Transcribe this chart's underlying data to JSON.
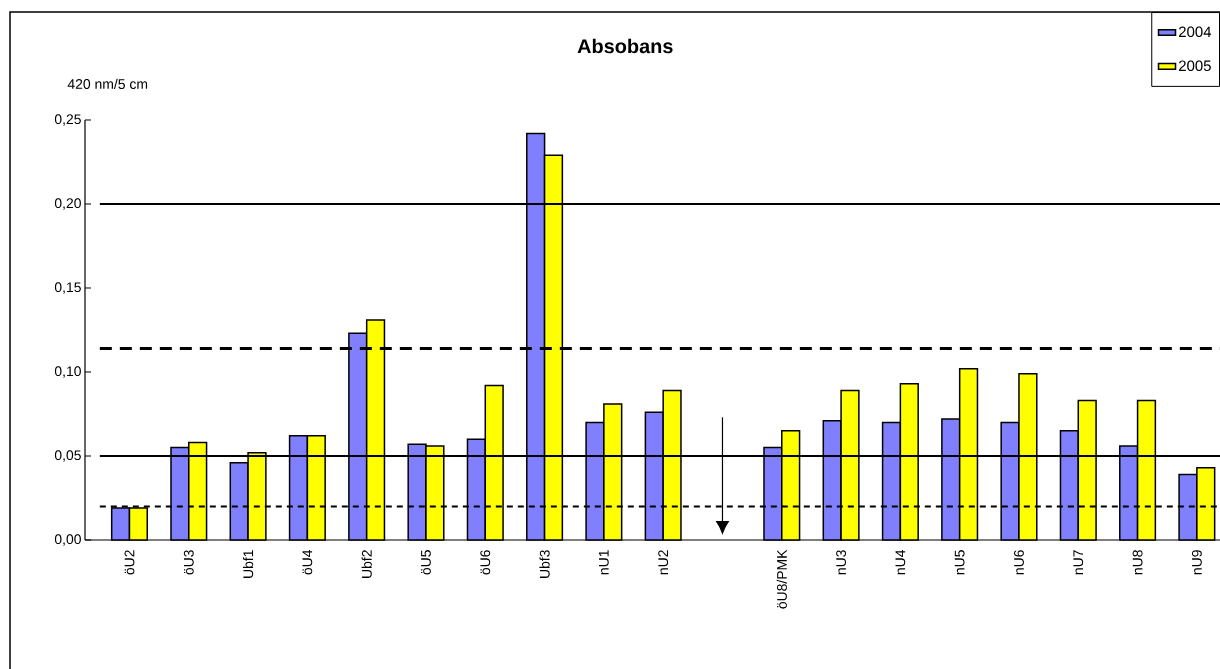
{
  "chart_data": {
    "type": "bar",
    "title": "Absobans",
    "ylabel": "420 nm/5 cm",
    "categories": [
      "öU2",
      "öU3",
      "Ubf1",
      "öU4",
      "Ubf2",
      "öU5",
      "öU6",
      "Ubf3",
      "nU1",
      "nU2",
      null,
      "öU8/PMK",
      "nU3",
      "nU4",
      "nU5",
      "nU6",
      "nU7",
      "nU8",
      "nU9"
    ],
    "series": [
      {
        "name": "2004",
        "color": "#8080ff",
        "values": [
          0.019,
          0.055,
          0.046,
          0.062,
          0.123,
          0.057,
          0.06,
          0.242,
          0.07,
          0.076,
          null,
          0.055,
          0.071,
          0.07,
          0.072,
          0.07,
          0.065,
          0.056,
          0.039
        ]
      },
      {
        "name": "2005",
        "color": "#ffff00",
        "values": [
          0.019,
          0.058,
          0.052,
          0.062,
          0.131,
          0.056,
          0.092,
          0.229,
          0.081,
          0.089,
          null,
          0.065,
          0.089,
          0.093,
          0.102,
          0.099,
          0.083,
          0.083,
          0.043
        ]
      }
    ],
    "ylim": [
      0,
      0.25
    ],
    "yticks": [
      {
        "value": 0,
        "label": "0,00"
      },
      {
        "value": 0.05,
        "label": "0,05"
      },
      {
        "value": 0.1,
        "label": "0,10"
      },
      {
        "value": 0.15,
        "label": "0,15"
      },
      {
        "value": 0.2,
        "label": "0,20"
      },
      {
        "value": 0.25,
        "label": "0,25"
      }
    ],
    "ref_lines": [
      {
        "axis": "y",
        "value": 0.2,
        "line_style": "solid",
        "color": "#000000"
      },
      {
        "axis": "y",
        "value": 0.114,
        "line_style": "dashed",
        "color": "#000000"
      },
      {
        "axis": "y",
        "value": 0.05,
        "line_style": "solid",
        "color": "#000000"
      },
      {
        "axis": "y",
        "value": 0.02,
        "line_style": "dotted",
        "color": "#000000"
      }
    ],
    "legend": "top right",
    "grid": false
  }
}
